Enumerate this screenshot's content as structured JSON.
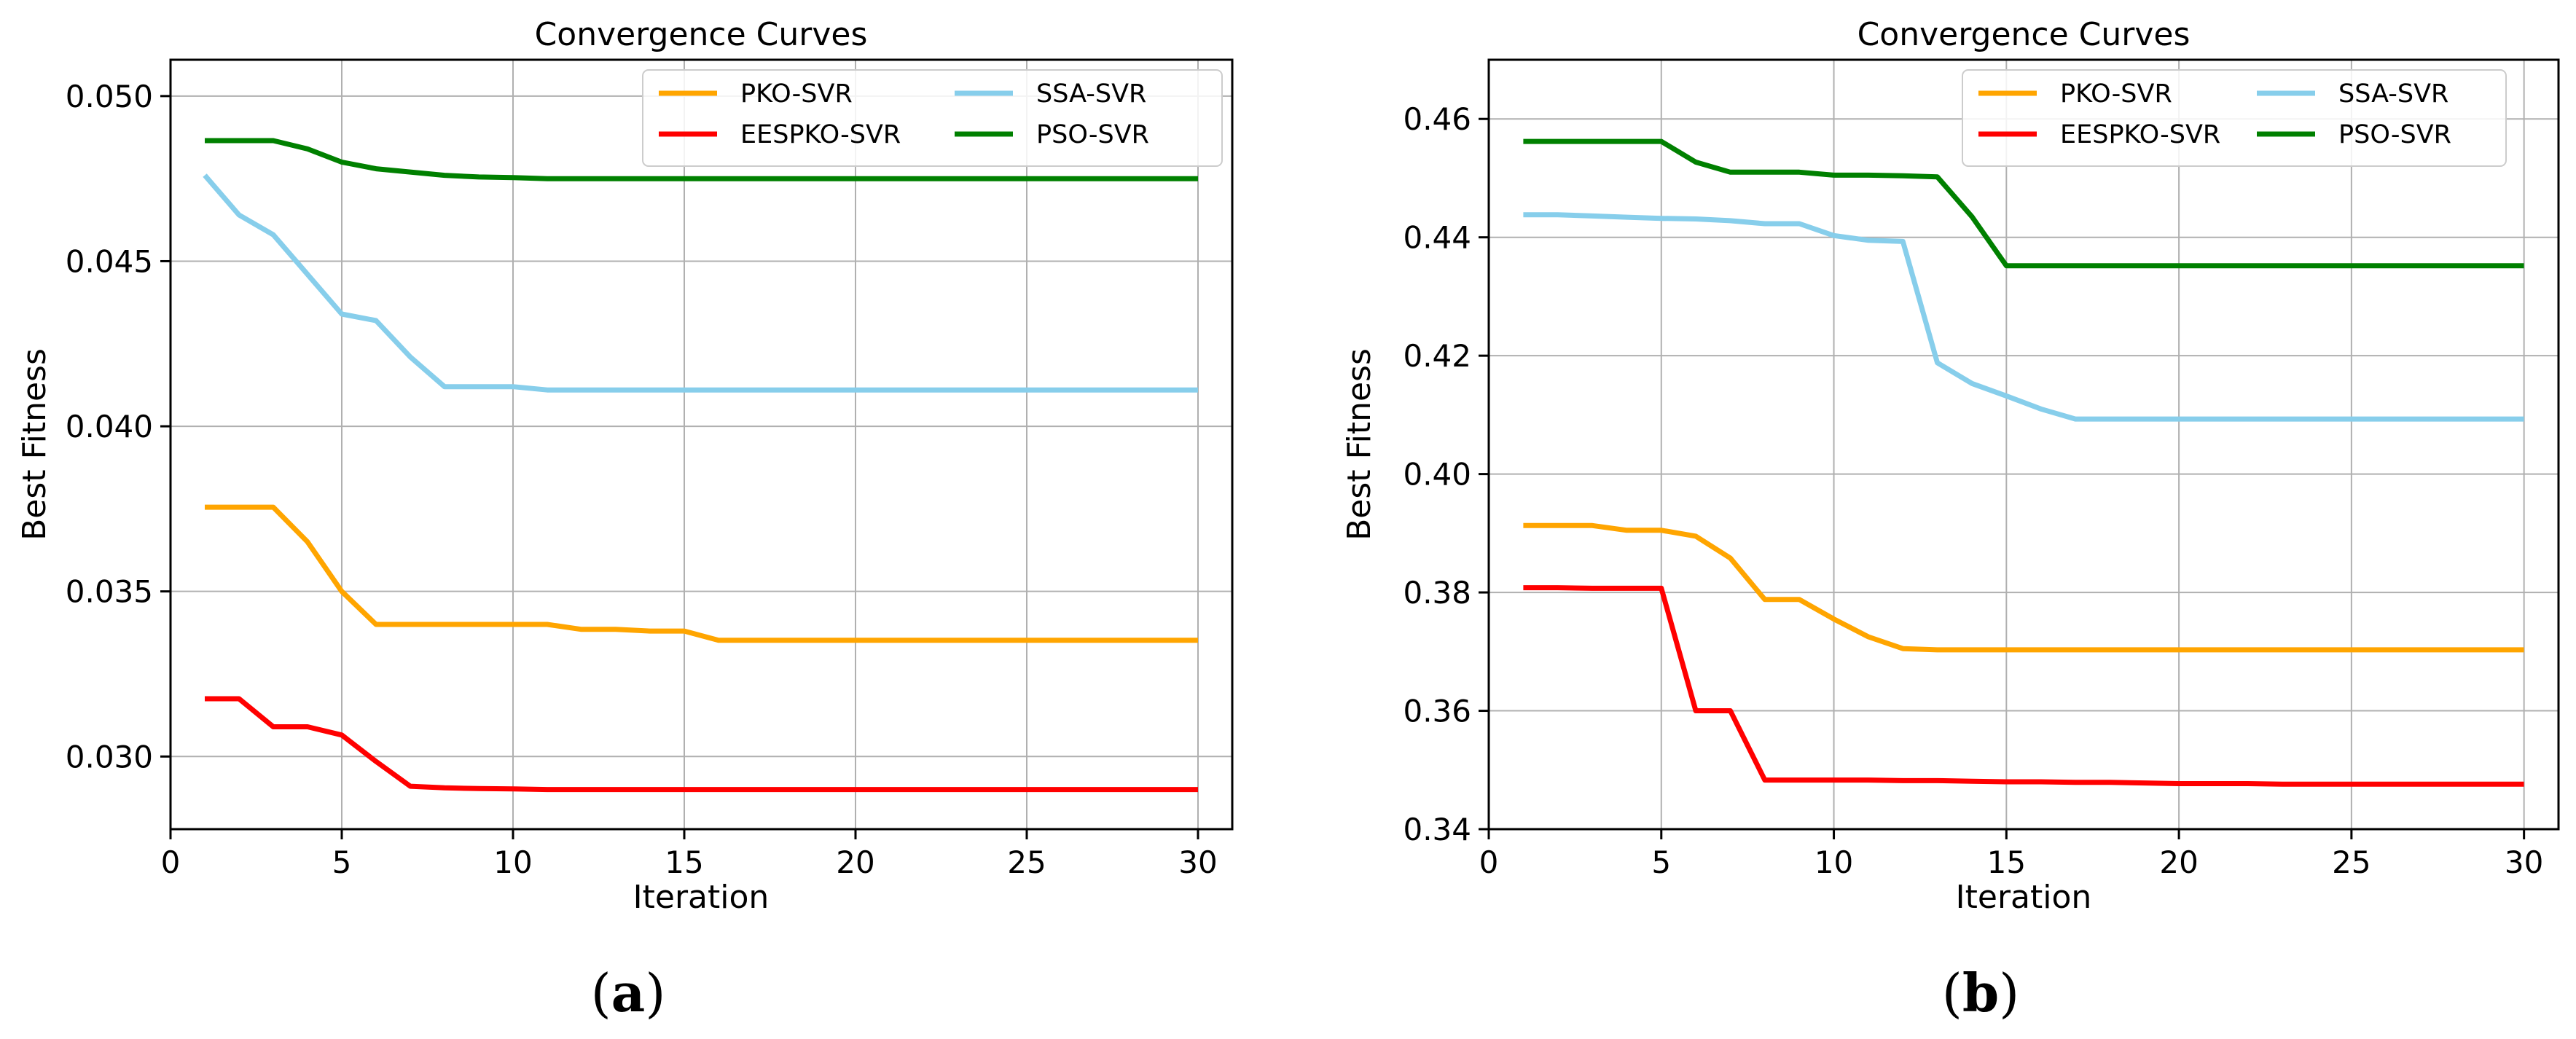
{
  "figure": {
    "panel_labels": [
      "a",
      "b"
    ]
  },
  "chart_data": [
    {
      "type": "line",
      "title": "Convergence Curves",
      "xlabel": "Iteration",
      "ylabel": "Best Fitness",
      "xlim": [
        0,
        31
      ],
      "ylim": [
        0.0278,
        0.0511
      ],
      "xticks": [
        0,
        5,
        10,
        15,
        20,
        25,
        30
      ],
      "xtick_labels": [
        "0",
        "5",
        "10",
        "15",
        "20",
        "25",
        "30"
      ],
      "yticks": [
        0.03,
        0.035,
        0.04,
        0.045,
        0.05
      ],
      "ytick_labels": [
        "0.030",
        "0.035",
        "0.040",
        "0.045",
        "0.050"
      ],
      "grid": true,
      "legend_position": "top-right",
      "legend_columns": 2,
      "x": [
        1,
        2,
        3,
        4,
        5,
        6,
        7,
        8,
        9,
        10,
        11,
        12,
        13,
        14,
        15,
        16,
        17,
        18,
        19,
        20,
        21,
        22,
        23,
        24,
        25,
        26,
        27,
        28,
        29,
        30
      ],
      "series": [
        {
          "name": "PKO-SVR",
          "color": "#FFA500",
          "values": [
            0.03755,
            0.03755,
            0.03755,
            0.0365,
            0.035,
            0.034,
            0.034,
            0.034,
            0.034,
            0.034,
            0.034,
            0.03385,
            0.03385,
            0.0338,
            0.0338,
            0.03352,
            0.03352,
            0.03352,
            0.03352,
            0.03352,
            0.03352,
            0.03352,
            0.03352,
            0.03352,
            0.03352,
            0.03352,
            0.03352,
            0.03352,
            0.03352,
            0.03352
          ]
        },
        {
          "name": "EESPKO-SVR",
          "color": "#FF0000",
          "values": [
            0.03175,
            0.03175,
            0.0309,
            0.0309,
            0.03065,
            0.02985,
            0.0291,
            0.02905,
            0.02903,
            0.02902,
            0.029,
            0.029,
            0.029,
            0.029,
            0.029,
            0.029,
            0.029,
            0.029,
            0.029,
            0.029,
            0.029,
            0.029,
            0.029,
            0.029,
            0.029,
            0.029,
            0.029,
            0.029,
            0.029,
            0.029
          ]
        },
        {
          "name": "SSA-SVR",
          "color": "#87CEEB",
          "values": [
            0.0476,
            0.0464,
            0.0458,
            0.0446,
            0.0434,
            0.0432,
            0.0421,
            0.0412,
            0.0412,
            0.0412,
            0.0411,
            0.0411,
            0.0411,
            0.0411,
            0.0411,
            0.0411,
            0.0411,
            0.0411,
            0.0411,
            0.0411,
            0.0411,
            0.0411,
            0.0411,
            0.0411,
            0.0411,
            0.0411,
            0.0411,
            0.0411,
            0.0411,
            0.0411
          ]
        },
        {
          "name": "PSO-SVR",
          "color": "#008000",
          "values": [
            0.04865,
            0.04865,
            0.04865,
            0.0484,
            0.048,
            0.0478,
            0.0477,
            0.0476,
            0.04755,
            0.04753,
            0.0475,
            0.0475,
            0.0475,
            0.0475,
            0.0475,
            0.0475,
            0.0475,
            0.0475,
            0.0475,
            0.0475,
            0.0475,
            0.0475,
            0.0475,
            0.0475,
            0.0475,
            0.0475,
            0.0475,
            0.0475,
            0.0475,
            0.0475
          ]
        }
      ]
    },
    {
      "type": "line",
      "title": "Convergence Curves",
      "xlabel": "Iteration",
      "ylabel": "Best Fitness",
      "xlim": [
        0,
        31
      ],
      "ylim": [
        0.34,
        0.47
      ],
      "xticks": [
        0,
        5,
        10,
        15,
        20,
        25,
        30
      ],
      "xtick_labels": [
        "0",
        "5",
        "10",
        "15",
        "20",
        "25",
        "30"
      ],
      "yticks": [
        0.34,
        0.36,
        0.38,
        0.4,
        0.42,
        0.44,
        0.46
      ],
      "ytick_labels": [
        "0.34",
        "0.36",
        "0.38",
        "0.40",
        "0.42",
        "0.44",
        "0.46"
      ],
      "grid": true,
      "legend_position": "top-right",
      "legend_columns": 2,
      "x": [
        1,
        2,
        3,
        4,
        5,
        6,
        7,
        8,
        9,
        10,
        11,
        12,
        13,
        14,
        15,
        16,
        17,
        18,
        19,
        20,
        21,
        22,
        23,
        24,
        25,
        26,
        27,
        28,
        29,
        30
      ],
      "series": [
        {
          "name": "PKO-SVR",
          "color": "#FFA500",
          "values": [
            0.3913,
            0.3913,
            0.3913,
            0.3905,
            0.3905,
            0.3895,
            0.3858,
            0.3788,
            0.3788,
            0.3755,
            0.3725,
            0.3705,
            0.3703,
            0.3703,
            0.3703,
            0.3703,
            0.3703,
            0.3703,
            0.3703,
            0.3703,
            0.3703,
            0.3703,
            0.3703,
            0.3703,
            0.3703,
            0.3703,
            0.3703,
            0.3703,
            0.3703,
            0.3703
          ]
        },
        {
          "name": "EESPKO-SVR",
          "color": "#FF0000",
          "values": [
            0.3808,
            0.3808,
            0.3807,
            0.3807,
            0.3807,
            0.36,
            0.36,
            0.3483,
            0.3483,
            0.3483,
            0.3483,
            0.3482,
            0.3482,
            0.3481,
            0.348,
            0.348,
            0.3479,
            0.3479,
            0.3478,
            0.3477,
            0.3477,
            0.3477,
            0.3476,
            0.3476,
            0.3476,
            0.3476,
            0.3476,
            0.3476,
            0.3476,
            0.3476
          ]
        },
        {
          "name": "SSA-SVR",
          "color": "#87CEEB",
          "values": [
            0.4438,
            0.4438,
            0.4436,
            0.4434,
            0.4432,
            0.4431,
            0.4428,
            0.4423,
            0.4423,
            0.4403,
            0.4395,
            0.4393,
            0.4188,
            0.4153,
            0.4132,
            0.411,
            0.4093,
            0.4093,
            0.4093,
            0.4093,
            0.4093,
            0.4093,
            0.4093,
            0.4093,
            0.4093,
            0.4093,
            0.4093,
            0.4093,
            0.4093,
            0.4093
          ]
        },
        {
          "name": "PSO-SVR",
          "color": "#008000",
          "values": [
            0.4562,
            0.4562,
            0.4562,
            0.4562,
            0.4562,
            0.4527,
            0.451,
            0.451,
            0.451,
            0.4505,
            0.4505,
            0.4504,
            0.4502,
            0.4435,
            0.4352,
            0.4352,
            0.4352,
            0.4352,
            0.4352,
            0.4352,
            0.4352,
            0.4352,
            0.4352,
            0.4352,
            0.4352,
            0.4352,
            0.4352,
            0.4352,
            0.4352,
            0.4352
          ]
        }
      ]
    }
  ]
}
